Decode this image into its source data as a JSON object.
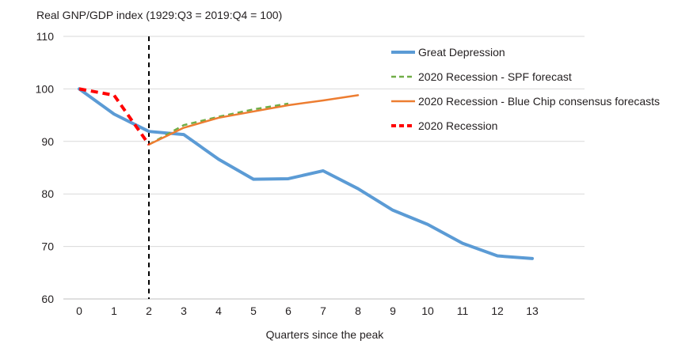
{
  "chart_data": {
    "type": "line",
    "title": "Real GNP/GDP index (1929:Q3 = 2019:Q4 = 100)",
    "xlabel": "Quarters since the peak",
    "ylabel": "",
    "xlim": [
      0,
      14
    ],
    "ylim": [
      60,
      110
    ],
    "x_ticks": [
      0,
      1,
      2,
      3,
      4,
      5,
      6,
      7,
      8,
      9,
      10,
      11,
      12,
      13
    ],
    "y_ticks": [
      60,
      70,
      80,
      90,
      100,
      110
    ],
    "grid": true,
    "legend_position": "top-right",
    "annotations": [
      {
        "type": "vertical-dashed-line",
        "x": 2
      }
    ],
    "series": [
      {
        "name": "Great Depression",
        "color": "#5b9bd5",
        "style": "solid",
        "width": "thick",
        "x": [
          0,
          1,
          2,
          3,
          4,
          5,
          6,
          7,
          8,
          9,
          10,
          11,
          12,
          13
        ],
        "values": [
          100,
          95.2,
          91.9,
          91.3,
          86.6,
          82.8,
          82.9,
          84.4,
          81.0,
          76.9,
          74.2,
          70.6,
          68.2,
          67.7
        ]
      },
      {
        "name": "2020 Recession - SPF forecast",
        "color": "#70ad47",
        "style": "dashed",
        "width": "normal",
        "x": [
          2,
          3,
          4,
          5,
          6
        ],
        "values": [
          89.4,
          93.1,
          94.7,
          96.1,
          97.2
        ]
      },
      {
        "name": "2020 Recession - Blue Chip consensus forecasts",
        "color": "#ed7d31",
        "style": "solid",
        "width": "normal",
        "x": [
          2,
          3,
          4,
          5,
          6,
          7,
          8
        ],
        "values": [
          89.4,
          92.6,
          94.5,
          95.7,
          96.9,
          97.8,
          98.8
        ]
      },
      {
        "name": "2020 Recession",
        "color": "#ff0000",
        "style": "dashed",
        "width": "thick",
        "x": [
          0,
          1,
          2
        ],
        "values": [
          100,
          98.8,
          89.4
        ]
      }
    ]
  }
}
